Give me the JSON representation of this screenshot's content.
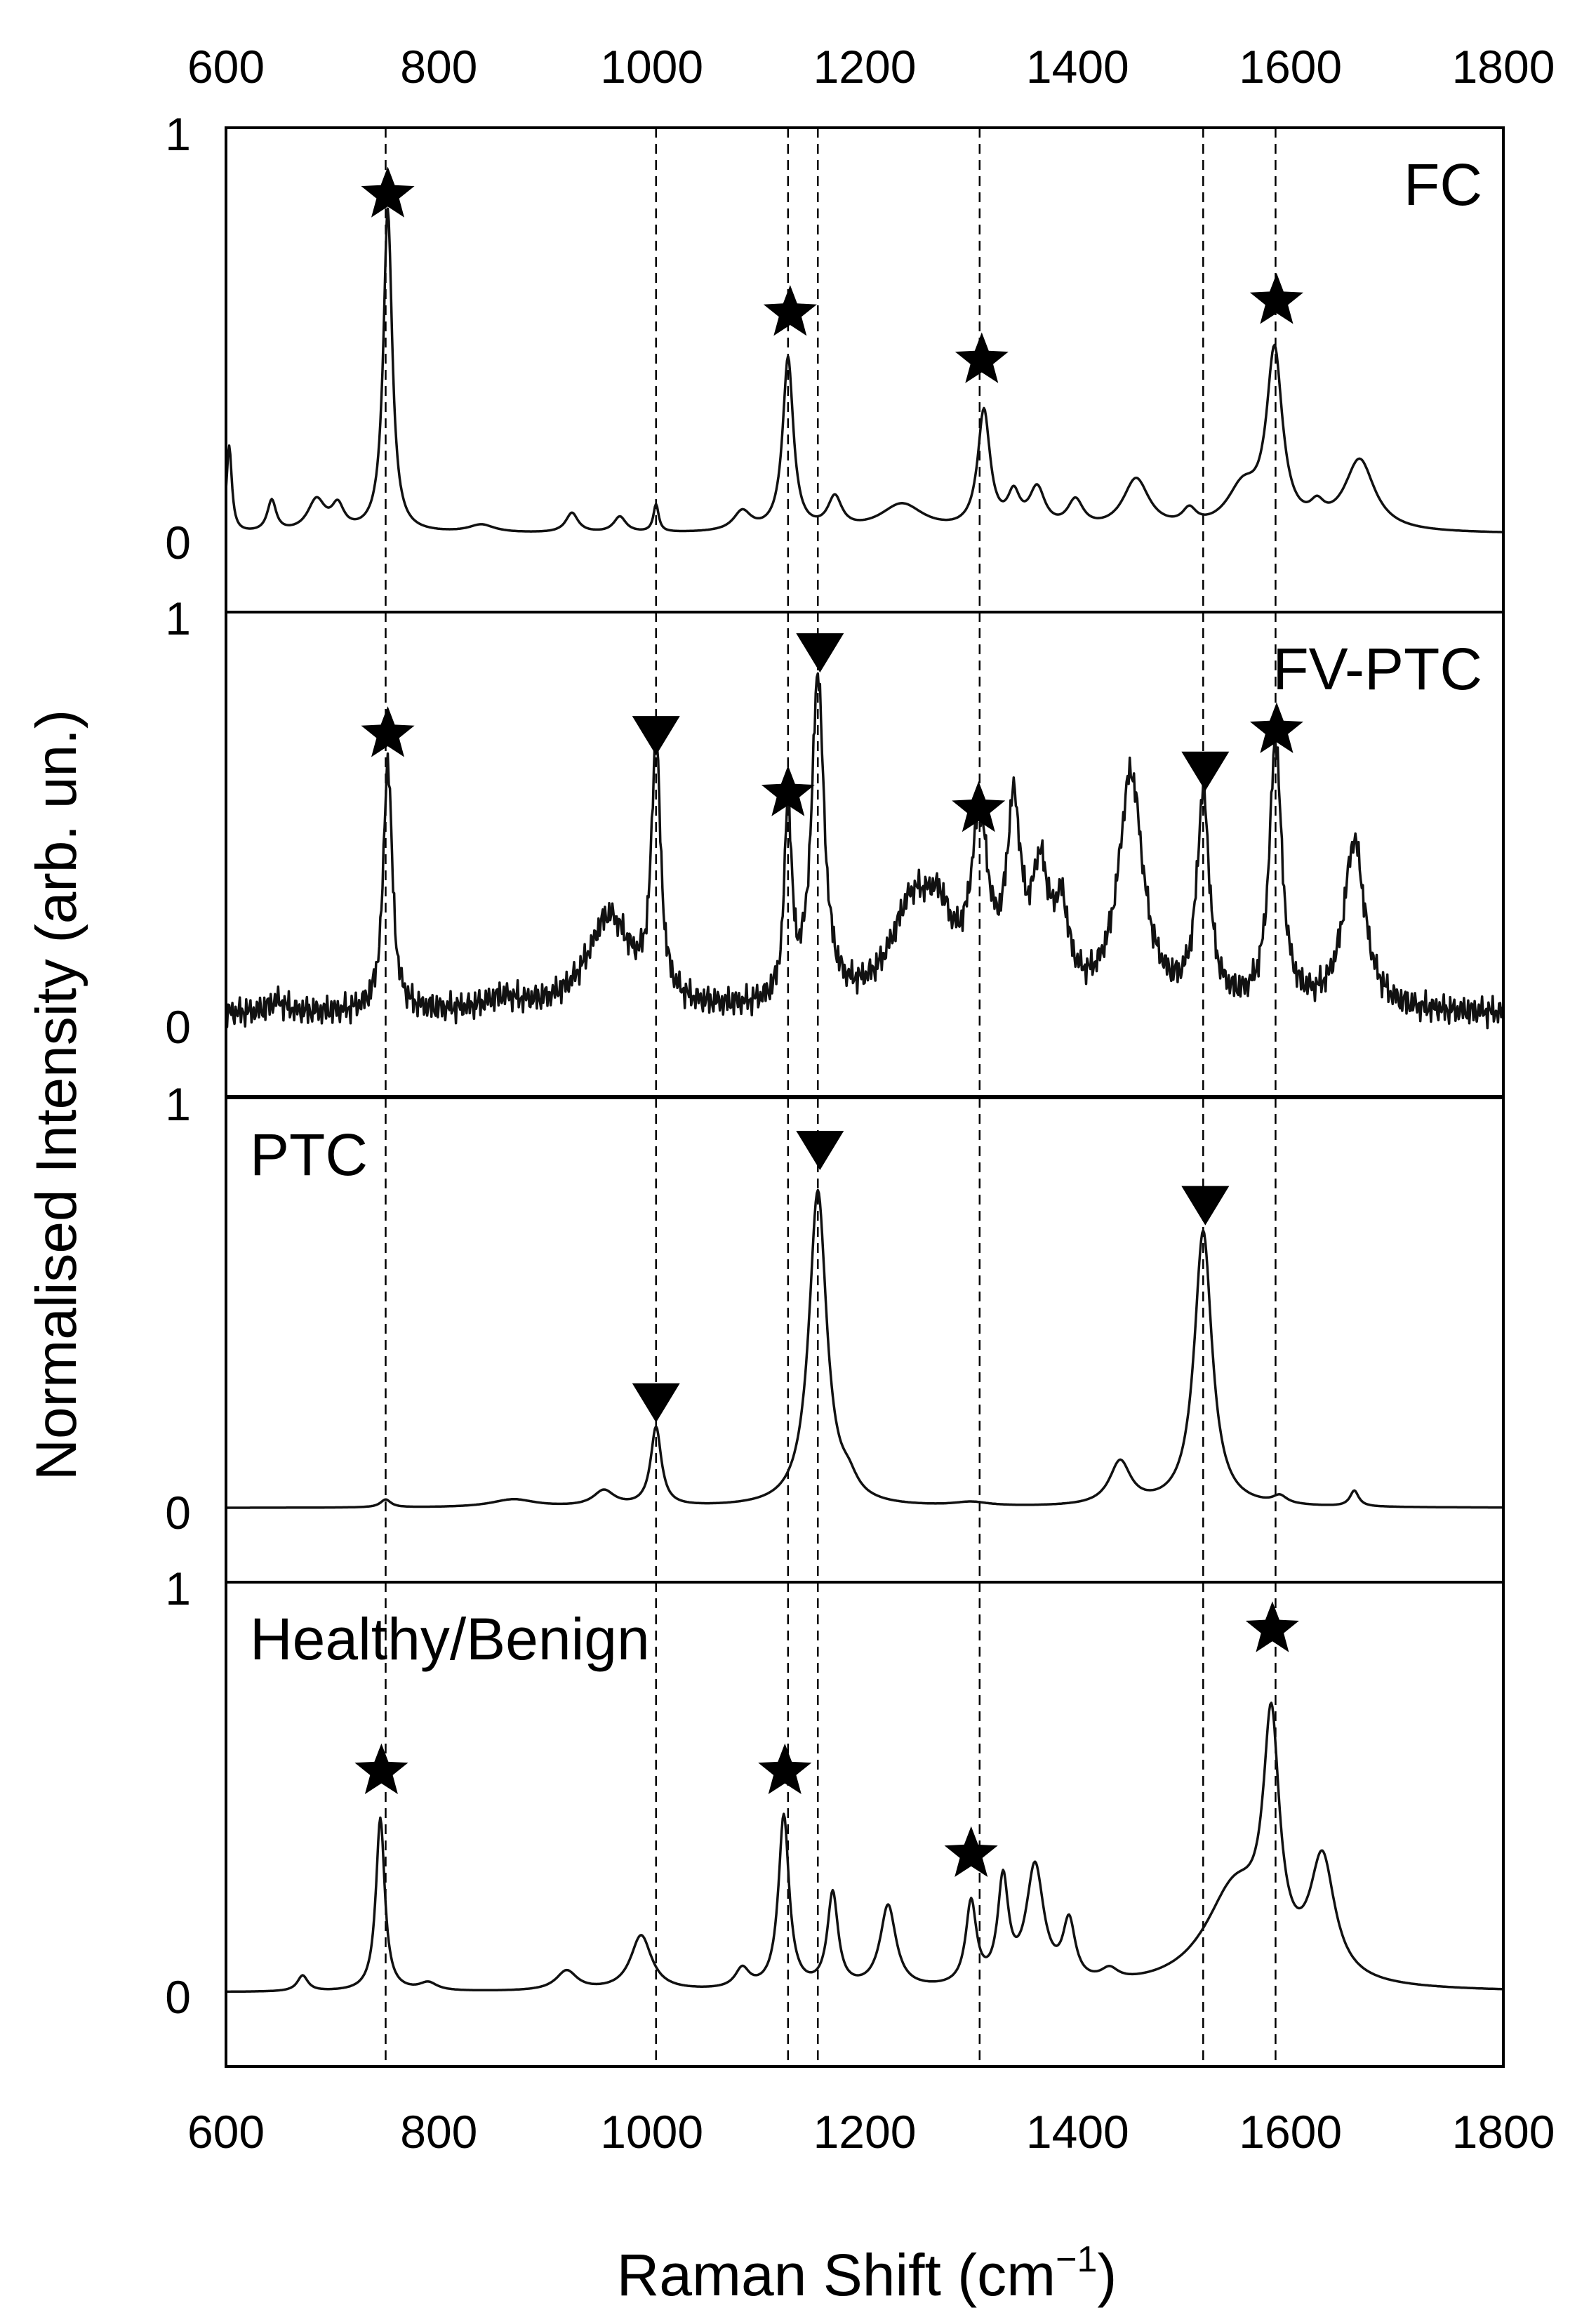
{
  "chart_data": {
    "type": "line",
    "xlabel": "Raman Shift (cm",
    "xlabel_sup": "−1",
    "xlabel_close": ")",
    "ylabel": "Normalised Intensity (arb. un.)",
    "xlim": [
      600,
      1800
    ],
    "ylim": [
      0,
      1
    ],
    "x_ticks": [
      600,
      800,
      1000,
      1200,
      1400,
      1600,
      1800
    ],
    "y_tick_labels": [
      "0",
      "1"
    ],
    "grid": false,
    "reference_lines": [
      750,
      1004,
      1128,
      1156,
      1308,
      1518,
      1586
    ],
    "marker_legend": {
      "star": "★",
      "triangle": "▼"
    },
    "panels": [
      {
        "name": "FC",
        "label_position": "top-right",
        "baseline": 0.02,
        "peaks": [
          {
            "x": 603,
            "h": 0.22,
            "w": 3
          },
          {
            "x": 643,
            "h": 0.08,
            "w": 5
          },
          {
            "x": 685,
            "h": 0.08,
            "w": 10
          },
          {
            "x": 705,
            "h": 0.06,
            "w": 7
          },
          {
            "x": 752,
            "h": 0.82,
            "w": 5
          },
          {
            "x": 840,
            "h": 0.02,
            "w": 15
          },
          {
            "x": 925,
            "h": 0.05,
            "w": 7
          },
          {
            "x": 970,
            "h": 0.04,
            "w": 7
          },
          {
            "x": 1004,
            "h": 0.07,
            "w": 3
          },
          {
            "x": 1085,
            "h": 0.05,
            "w": 10
          },
          {
            "x": 1128,
            "h": 0.44,
            "w": 6
          },
          {
            "x": 1172,
            "h": 0.08,
            "w": 8
          },
          {
            "x": 1235,
            "h": 0.07,
            "w": 25
          },
          {
            "x": 1312,
            "h": 0.3,
            "w": 7
          },
          {
            "x": 1340,
            "h": 0.08,
            "w": 7
          },
          {
            "x": 1362,
            "h": 0.1,
            "w": 9
          },
          {
            "x": 1398,
            "h": 0.07,
            "w": 9
          },
          {
            "x": 1455,
            "h": 0.13,
            "w": 15
          },
          {
            "x": 1505,
            "h": 0.04,
            "w": 8
          },
          {
            "x": 1555,
            "h": 0.1,
            "w": 18
          },
          {
            "x": 1585,
            "h": 0.44,
            "w": 9
          },
          {
            "x": 1625,
            "h": 0.04,
            "w": 8
          },
          {
            "x": 1665,
            "h": 0.18,
            "w": 17
          }
        ],
        "markers": [
          {
            "x": 752,
            "y": 0.88,
            "kind": "star"
          },
          {
            "x": 1130,
            "y": 0.58,
            "kind": "star"
          },
          {
            "x": 1310,
            "y": 0.46,
            "kind": "star"
          },
          {
            "x": 1587,
            "y": 0.61,
            "kind": "star"
          }
        ]
      },
      {
        "name": "FV-PTC",
        "label_position": "top-right",
        "baseline": 0.03,
        "peaks": [
          {
            "x": 648,
            "h": 0.03,
            "w": 10
          },
          {
            "x": 752,
            "h": 0.64,
            "w": 5
          },
          {
            "x": 860,
            "h": 0.03,
            "w": 20
          },
          {
            "x": 960,
            "h": 0.24,
            "w": 25
          },
          {
            "x": 1004,
            "h": 0.65,
            "w": 5
          },
          {
            "x": 1128,
            "h": 0.5,
            "w": 4
          },
          {
            "x": 1156,
            "h": 0.83,
            "w": 7
          },
          {
            "x": 1245,
            "h": 0.25,
            "w": 25
          },
          {
            "x": 1270,
            "h": 0.15,
            "w": 15
          },
          {
            "x": 1308,
            "h": 0.42,
            "w": 10
          },
          {
            "x": 1340,
            "h": 0.45,
            "w": 8
          },
          {
            "x": 1365,
            "h": 0.3,
            "w": 10
          },
          {
            "x": 1385,
            "h": 0.2,
            "w": 8
          },
          {
            "x": 1450,
            "h": 0.59,
            "w": 14
          },
          {
            "x": 1518,
            "h": 0.53,
            "w": 7
          },
          {
            "x": 1586,
            "h": 0.67,
            "w": 7
          },
          {
            "x": 1660,
            "h": 0.43,
            "w": 12
          }
        ],
        "markers": [
          {
            "x": 752,
            "y": 0.74,
            "kind": "star"
          },
          {
            "x": 1004,
            "y": 0.74,
            "kind": "triangle"
          },
          {
            "x": 1128,
            "y": 0.59,
            "kind": "star"
          },
          {
            "x": 1158,
            "y": 0.95,
            "kind": "triangle"
          },
          {
            "x": 1307,
            "y": 0.55,
            "kind": "star"
          },
          {
            "x": 1520,
            "y": 0.65,
            "kind": "triangle"
          },
          {
            "x": 1587,
            "y": 0.75,
            "kind": "star"
          }
        ]
      },
      {
        "name": "PTC",
        "label_position": "top-left",
        "baseline": 0.01,
        "peaks": [
          {
            "x": 750,
            "h": 0.02,
            "w": 6
          },
          {
            "x": 870,
            "h": 0.02,
            "w": 25
          },
          {
            "x": 955,
            "h": 0.04,
            "w": 12
          },
          {
            "x": 1004,
            "h": 0.2,
            "w": 6
          },
          {
            "x": 1156,
            "h": 0.8,
            "w": 10
          },
          {
            "x": 1185,
            "h": 0.04,
            "w": 10
          },
          {
            "x": 1300,
            "h": 0.01,
            "w": 20
          },
          {
            "x": 1440,
            "h": 0.11,
            "w": 12
          },
          {
            "x": 1518,
            "h": 0.7,
            "w": 10
          },
          {
            "x": 1590,
            "h": 0.02,
            "w": 8
          },
          {
            "x": 1660,
            "h": 0.04,
            "w": 5
          }
        ],
        "markers": [
          {
            "x": 1004,
            "y": 0.28,
            "kind": "triangle"
          },
          {
            "x": 1158,
            "y": 0.92,
            "kind": "triangle"
          },
          {
            "x": 1520,
            "y": 0.78,
            "kind": "triangle"
          }
        ]
      },
      {
        "name": "Healthy/Benign",
        "label_position": "top-left",
        "baseline": 0.01,
        "peaks": [
          {
            "x": 672,
            "h": 0.04,
            "w": 6
          },
          {
            "x": 745,
            "h": 0.44,
            "w": 5
          },
          {
            "x": 790,
            "h": 0.02,
            "w": 10
          },
          {
            "x": 920,
            "h": 0.05,
            "w": 12
          },
          {
            "x": 990,
            "h": 0.14,
            "w": 12
          },
          {
            "x": 1085,
            "h": 0.05,
            "w": 8
          },
          {
            "x": 1124,
            "h": 0.44,
            "w": 6
          },
          {
            "x": 1170,
            "h": 0.24,
            "w": 6
          },
          {
            "x": 1222,
            "h": 0.21,
            "w": 9
          },
          {
            "x": 1300,
            "h": 0.21,
            "w": 6
          },
          {
            "x": 1330,
            "h": 0.26,
            "w": 6
          },
          {
            "x": 1360,
            "h": 0.3,
            "w": 10
          },
          {
            "x": 1392,
            "h": 0.15,
            "w": 7
          },
          {
            "x": 1430,
            "h": 0.03,
            "w": 10
          },
          {
            "x": 1548,
            "h": 0.25,
            "w": 35
          },
          {
            "x": 1582,
            "h": 0.58,
            "w": 9
          },
          {
            "x": 1630,
            "h": 0.3,
            "w": 14
          }
        ],
        "markers": [
          {
            "x": 746,
            "y": 0.57,
            "kind": "star"
          },
          {
            "x": 1125,
            "y": 0.57,
            "kind": "star"
          },
          {
            "x": 1300,
            "y": 0.36,
            "kind": "star"
          },
          {
            "x": 1583,
            "y": 0.93,
            "kind": "star"
          }
        ]
      }
    ]
  }
}
